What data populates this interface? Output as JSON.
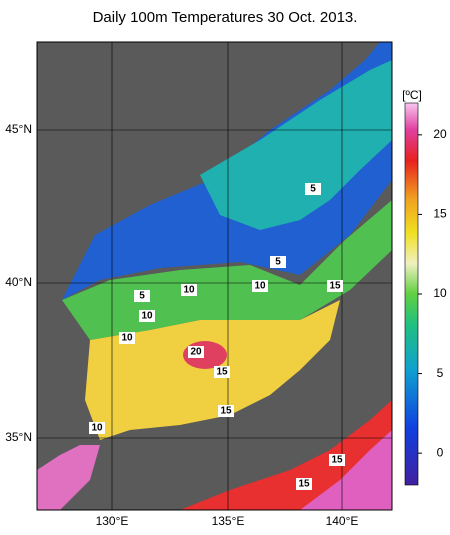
{
  "title": "Daily 100m Temperatures 30 Oct. 2013.",
  "map": {
    "lat_labels": [
      "45°N",
      "40°N",
      "35°N"
    ],
    "lon_labels": [
      "130°E",
      "135°E",
      "140°E"
    ]
  },
  "colorbar": {
    "label": "[ºC]",
    "range": [
      -2,
      22
    ],
    "ticks": [
      0,
      5,
      10,
      15,
      20
    ]
  },
  "contour_labels": [
    5,
    5,
    5,
    10,
    10,
    10,
    15,
    10,
    20,
    15,
    15,
    10,
    15,
    15
  ]
}
